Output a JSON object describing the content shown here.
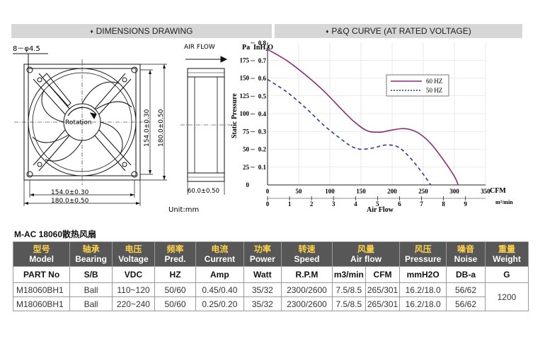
{
  "headers": {
    "dimensions": "DIMENSIONS DRAWING",
    "pq_curve": "P&Q CURVE (AT RATED VOLTAGE)",
    "bullet": "♦"
  },
  "drawing": {
    "holes_label": "8－φ4.5",
    "airflow_label": "AIR FLOW",
    "rotation_label": "Rotation",
    "dim_inner_h": "154.0±0.30",
    "dim_outer_h": "180.0±0.50",
    "dim_inner_v": "154.0±0.30",
    "dim_outer_v": "180.0±0.50",
    "dim_depth": "60.0±0.50",
    "unit_label": "Unit:mm"
  },
  "chart_data": {
    "type": "line",
    "ylabel": "Static Pressure",
    "y_unit_pa": "Pa",
    "y_unit_inh2o": "InH₂O",
    "xlabel": "Air Flow",
    "x_unit_cfm": "CFM",
    "x_unit_m3": "m³/min",
    "ylim": [
      0,
      200
    ],
    "xlim": [
      0,
      350
    ],
    "pa_ticks": [
      "175",
      "150",
      "125",
      "100",
      "75",
      "50",
      "25",
      "0"
    ],
    "pa_tick_values": [
      175,
      150,
      125,
      100,
      75,
      50,
      25,
      0
    ],
    "inh2o_ticks": [
      "0.8",
      "0.7",
      "0.6",
      "0.5",
      "0.4",
      "0.3",
      "0.2",
      "0.1"
    ],
    "inh2o_tick_values": [
      199.2,
      174.3,
      149.4,
      124.5,
      99.6,
      74.7,
      49.8,
      24.9
    ],
    "cfm_ticks": [
      "0",
      "50",
      "100",
      "150",
      "200",
      "250",
      "300",
      "350"
    ],
    "cfm_tick_values": [
      0,
      50,
      100,
      150,
      200,
      250,
      300,
      350
    ],
    "m3_ticks": [
      "0",
      "1",
      "2",
      "3",
      "4",
      "5",
      "6",
      "7",
      "8",
      "9"
    ],
    "m3_tick_values": [
      0,
      35.3,
      70.6,
      105.9,
      141.3,
      176.6,
      211.9,
      247.2,
      282.5,
      317.8
    ],
    "legend_position": "top-right",
    "series": [
      {
        "name": "60 HZ",
        "color": "#8b2c7c",
        "style": "solid",
        "x": [
          0,
          30,
          60,
          90,
          120,
          140,
          160,
          180,
          200,
          220,
          240,
          260,
          280,
          300,
          306
        ],
        "y": [
          190,
          175,
          155,
          132,
          105,
          88,
          76,
          74,
          77,
          79,
          74,
          60,
          38,
          12,
          0
        ]
      },
      {
        "name": "50 HZ",
        "color": "#2e3a8c",
        "style": "dashed",
        "x": [
          0,
          30,
          60,
          90,
          120,
          135,
          150,
          170,
          190,
          210,
          230,
          250,
          262
        ],
        "y": [
          148,
          131,
          109,
          84,
          63,
          54,
          50,
          52,
          56,
          53,
          37,
          15,
          0
        ]
      }
    ]
  },
  "table": {
    "title": "M-AC 18060散热风扇",
    "head_cn": [
      "型号",
      "轴承",
      "电压",
      "频率",
      "电流",
      "功率",
      "转速",
      "风量",
      "风压",
      "噪音",
      "重量"
    ],
    "head_en": [
      "Model",
      "Bearing",
      "Voltage",
      "Pred.",
      "Current",
      "Power",
      "Speed",
      "Air flow",
      "Pressure",
      "Noise",
      "Weight"
    ],
    "units": [
      "PART No",
      "S/B",
      "VDC",
      "HZ",
      "Amp",
      "Watt",
      "R.P.M",
      "m3/min",
      "CFM",
      "mmH2O",
      "DB-a",
      "G"
    ],
    "rows": [
      [
        "M18060BH1",
        "Ball",
        "110~120",
        "50/60",
        "0.45/0.40",
        "35/32",
        "2300/2600",
        "7.5/8.5",
        "265/301",
        "16.2/18.0",
        "56/62"
      ],
      [
        "M18060BH1",
        "Ball",
        "220~240",
        "50/60",
        "0.25/0.20",
        "35/32",
        "2300/2600",
        "7.5/8.5",
        "265/301",
        "16.2/18.0",
        "56/62"
      ]
    ],
    "weight": "1200"
  }
}
